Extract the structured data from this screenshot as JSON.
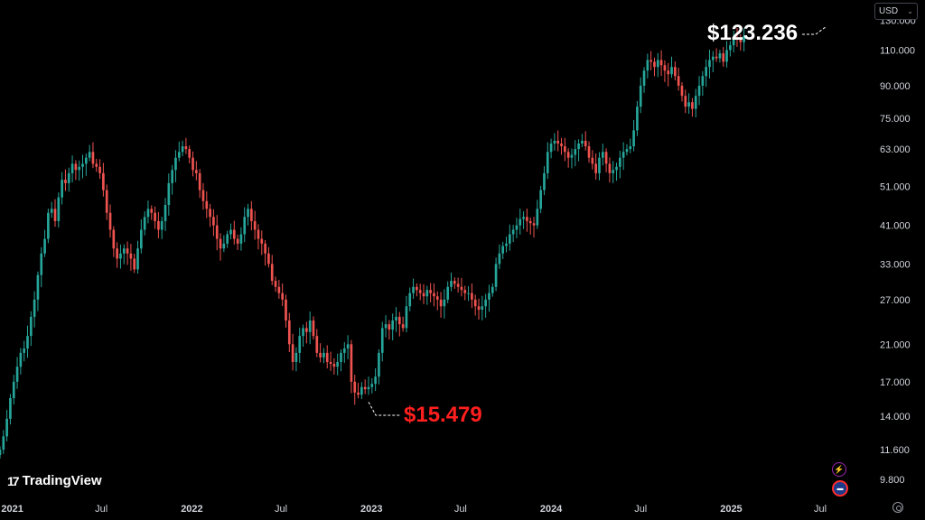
{
  "currency": {
    "label": "USD"
  },
  "branding": {
    "logo_text": "TradingView",
    "logo_mark": "17"
  },
  "colors": {
    "up": "#26a69a",
    "down": "#ef5350",
    "high_callout": "#ffffff",
    "low_callout": "#ff1f1f",
    "background": "#000000"
  },
  "chart_data": {
    "type": "candlestick",
    "y_scale": "log",
    "ylim": [
      9.0,
      140.0
    ],
    "y_ticks": [
      "130.000",
      "110.000",
      "90.000",
      "75.000",
      "63.000",
      "51.000",
      "41.000",
      "33.000",
      "27.000",
      "21.000",
      "17.000",
      "14.000",
      "11.600",
      "9.800"
    ],
    "x_ticks": [
      "2021",
      "Jul",
      "2022",
      "Jul",
      "2023",
      "Jul",
      "2024",
      "Jul",
      "2025",
      "Jul"
    ],
    "x_range": [
      "2020-12-07",
      "2025-08-25"
    ],
    "interval": "weekly",
    "annotations": [
      {
        "text": "$123.236",
        "x": "2025-07-14",
        "y": 123.236,
        "kind": "high"
      },
      {
        "text": "$15.479",
        "x": "2022-12-26",
        "y": 15.479,
        "kind": "low"
      }
    ],
    "series": [
      {
        "weekly_closes": [
          11.6,
          12.5,
          13.8,
          15.5,
          17.0,
          18.5,
          20.0,
          20.5,
          22.0,
          24.5,
          27.0,
          31.0,
          35.0,
          38.0,
          44.0,
          45.0,
          42.0,
          48.0,
          53.0,
          52.0,
          55.0,
          58.0,
          56.0,
          57.0,
          58.0,
          60.0,
          62.0,
          58.0,
          57.0,
          55.0,
          50.0,
          44.0,
          40.0,
          36.0,
          34.0,
          35.0,
          36.0,
          35.0,
          34.0,
          32.0,
          36.0,
          40.0,
          43.0,
          45.0,
          44.0,
          42.0,
          40.0,
          42.0,
          46.0,
          52.0,
          56.0,
          60.0,
          62.0,
          64.0,
          63.0,
          60.0,
          56.0,
          55.0,
          50.0,
          47.0,
          45.0,
          43.0,
          41.0,
          38.0,
          36.0,
          37.0,
          39.0,
          40.0,
          38.0,
          37.0,
          39.0,
          43.0,
          45.0,
          42.0,
          40.0,
          38.0,
          37.0,
          35.0,
          33.0,
          30.0,
          29.0,
          28.0,
          27.0,
          24.0,
          21.0,
          19.0,
          20.0,
          22.0,
          23.0,
          22.5,
          24.0,
          22.0,
          20.0,
          19.5,
          20.0,
          19.0,
          18.8,
          18.5,
          19.0,
          20.0,
          20.5,
          21.0,
          17.0,
          16.0,
          15.8,
          16.5,
          16.3,
          16.5,
          16.8,
          17.5,
          20.0,
          23.0,
          23.5,
          22.8,
          24.0,
          24.5,
          23.5,
          23.0,
          26.0,
          28.0,
          29.0,
          28.5,
          28.0,
          27.5,
          28.5,
          28.0,
          27.5,
          27.0,
          26.0,
          27.0,
          29.0,
          30.0,
          29.5,
          29.0,
          28.5,
          28.0,
          28.0,
          27.0,
          26.0,
          25.5,
          26.0,
          27.0,
          28.0,
          29.0,
          33.0,
          35.0,
          36.5,
          37.0,
          39.0,
          40.0,
          41.0,
          42.5,
          43.0,
          42.0,
          41.5,
          41.0,
          45.0,
          50.0,
          55.0,
          62.0,
          65.0,
          66.0,
          65.0,
          64.0,
          62.0,
          60.0,
          61.0,
          63.0,
          65.0,
          66.0,
          64.0,
          60.0,
          58.0,
          55.0,
          60.0,
          62.0,
          58.0,
          55.0,
          56.0,
          57.0,
          60.0,
          62.0,
          63.0,
          64.0,
          70.0,
          80.0,
          90.0,
          98.0,
          104.0,
          103.0,
          100.0,
          104.0,
          101.0,
          98.0,
          96.0,
          100.0,
          95.0,
          90.0,
          85.0,
          80.0,
          82.0,
          79.0,
          85.0,
          90.0,
          95.0,
          100.0,
          104.0,
          106.0,
          105.0,
          108.0,
          103.0,
          110.0,
          113.0,
          118.0,
          117.0,
          115.0,
          119.0
        ]
      }
    ]
  }
}
